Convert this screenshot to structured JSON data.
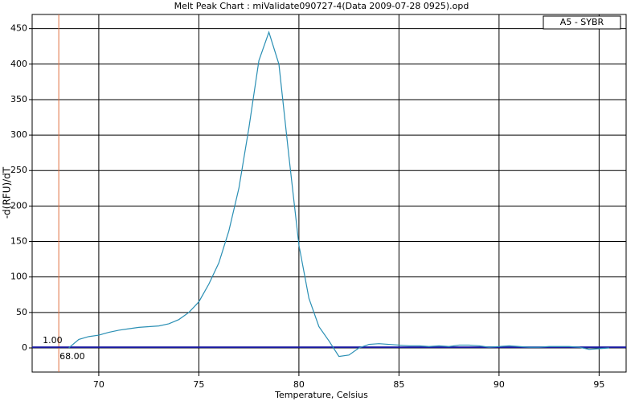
{
  "chart_data": {
    "type": "line",
    "title": "Melt Peak Chart : miValidate090727-4(Data 2009-07-28 0925).opd",
    "x_label": "Temperature, Celsius",
    "y_label": "-d(RFU)/dT",
    "x": [
      68.5,
      69,
      69.5,
      70,
      70.5,
      71,
      71.5,
      72,
      72.5,
      73,
      73.5,
      74,
      74.5,
      75,
      75.5,
      76,
      76.5,
      77,
      77.5,
      78,
      78.5,
      79,
      79.5,
      80,
      80.5,
      81,
      81.5,
      82,
      82.5,
      83,
      83.5,
      84,
      84.5,
      85,
      85.5,
      86,
      86.5,
      87,
      87.5,
      88,
      88.5,
      89,
      89.5,
      90,
      90.5,
      91,
      91.5,
      92,
      92.5,
      93,
      93.5,
      94,
      94.5,
      95,
      95.5
    ],
    "series": [
      {
        "name": "A5 - SYBR",
        "color": "#2a8fb4",
        "values": [
          0,
          12,
          16,
          18,
          22,
          25,
          27,
          29,
          30,
          31,
          34,
          40,
          50,
          65,
          90,
          120,
          165,
          225,
          310,
          405,
          445,
          400,
          270,
          145,
          70,
          30,
          10,
          -12,
          -10,
          0,
          5,
          6,
          5,
          4,
          3,
          3,
          2,
          3,
          2,
          4,
          4,
          3,
          1,
          2,
          3,
          2,
          1,
          1,
          2,
          2,
          2,
          1,
          -2,
          -1,
          0
        ]
      }
    ],
    "threshold": {
      "value": 1,
      "label": "1.00",
      "color": "#1a1aa0"
    },
    "marker": {
      "value": 68,
      "label": "68.00",
      "color": "#e07040"
    },
    "xlim": [
      66.67,
      96.35
    ],
    "ylim": [
      -34,
      470
    ],
    "xticks": [
      70,
      75,
      80,
      85,
      90,
      95
    ],
    "yticks": [
      0,
      50,
      100,
      150,
      200,
      250,
      300,
      350,
      400,
      450
    ],
    "grid": true,
    "legend": "top-right"
  }
}
